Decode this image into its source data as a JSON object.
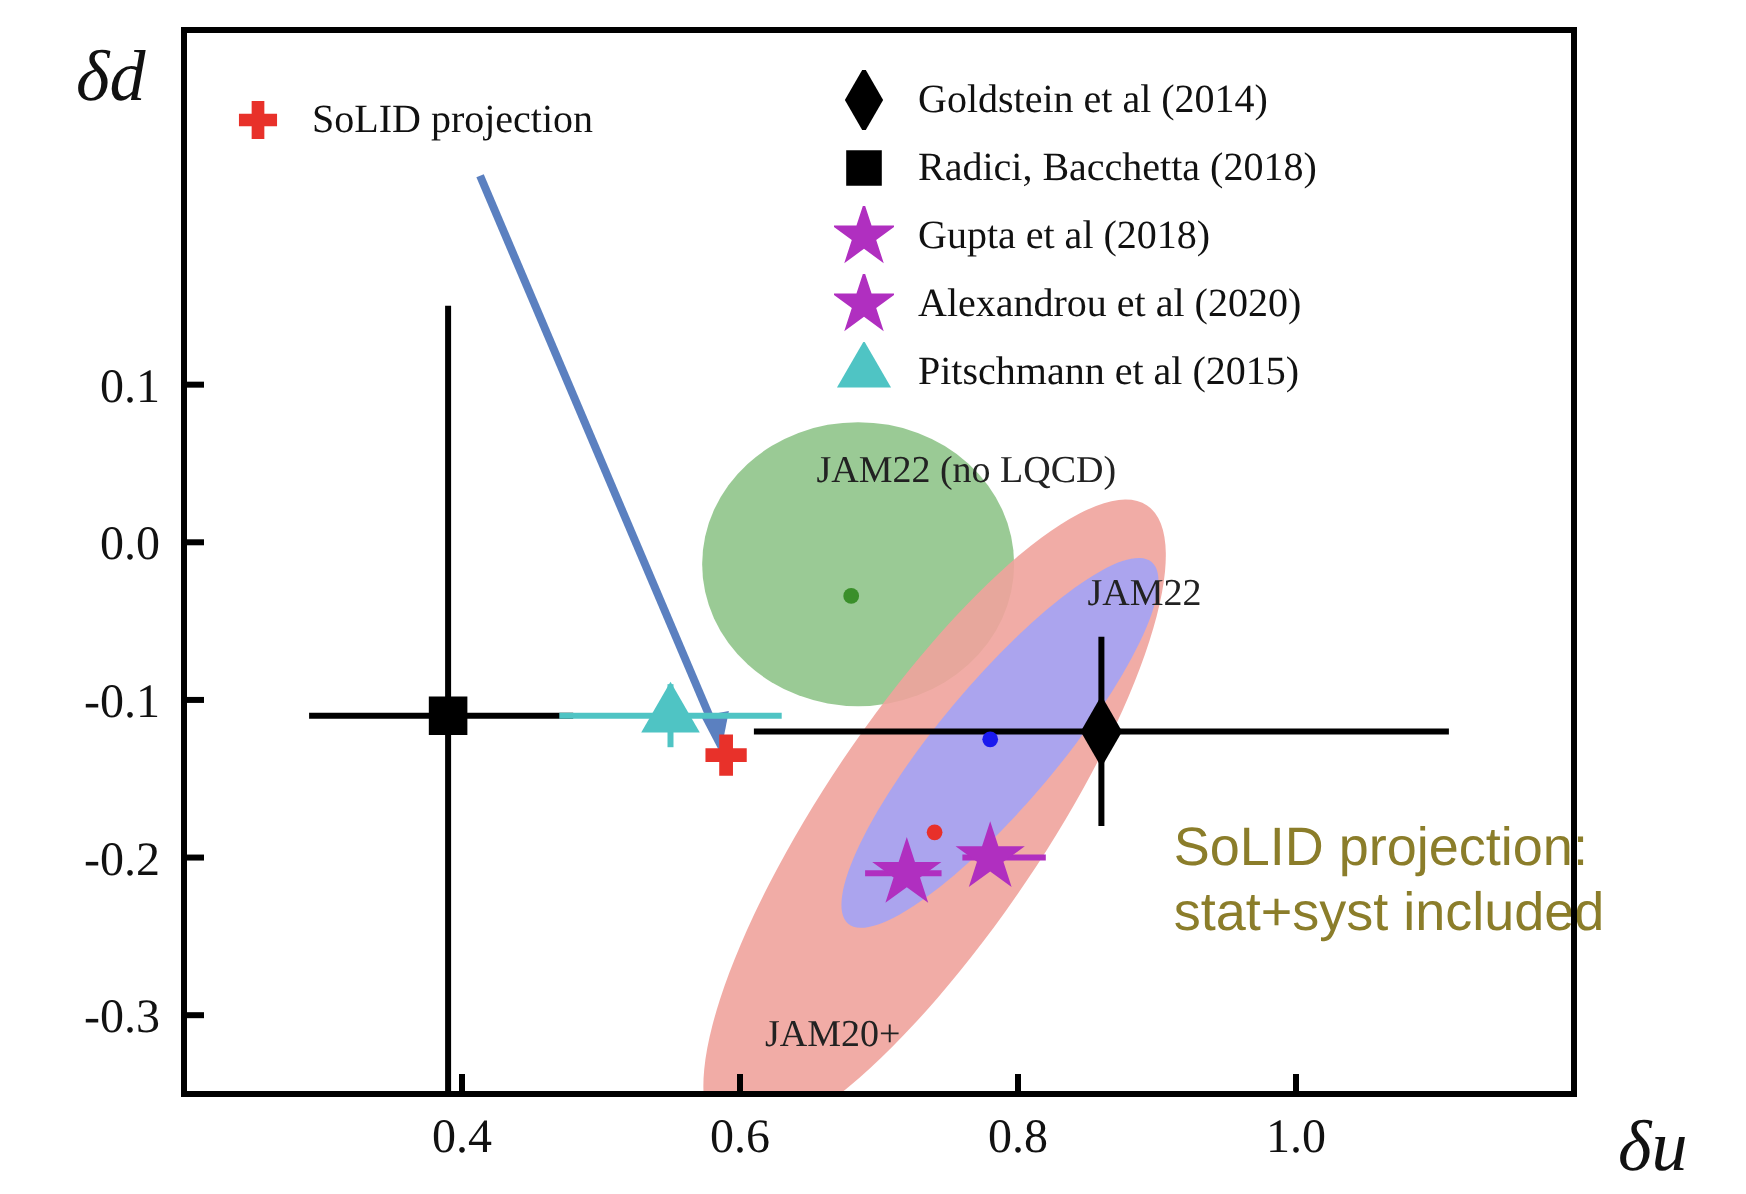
{
  "chart_data": {
    "type": "scatter",
    "xlabel": "δu",
    "ylabel": "δd",
    "xlim": [
      0.2,
      1.2
    ],
    "xticks": [
      0.4,
      0.6,
      0.8,
      {
        "value": 1,
        "label": "1.0"
      }
    ],
    "ylim": [
      -0.35,
      0.325
    ],
    "yticks": [
      -0.3,
      -0.2,
      -0.1,
      {
        "value": 0,
        "label": "0.0"
      },
      0.1
    ],
    "grid": false,
    "legend": "top",
    "series": [
      {
        "name": "SoLID projection",
        "color": "#e8312a",
        "marker": "cross",
        "x": [
          0.59
        ],
        "values": [
          -0.135
        ]
      },
      {
        "name": "Goldstein et al (2014)",
        "color": "#000000",
        "marker": "diamond",
        "x": [
          0.86
        ],
        "values": [
          -0.12
        ],
        "xerrors": [
          [
            0.61,
            1.11
          ]
        ],
        "errors": [
          [
            -0.18,
            -0.06
          ]
        ]
      },
      {
        "name": "Radici, Bacchetta (2018)",
        "color": "#000000",
        "marker": "square",
        "x": [
          0.39
        ],
        "values": [
          -0.11
        ],
        "xerrors": [
          [
            0.29,
            0.48
          ]
        ],
        "errors": [
          [
            -0.35,
            0.15
          ]
        ]
      },
      {
        "name": "Gupta et al (2018)",
        "color": "#b02fc0",
        "marker": "star",
        "x": [
          0.78
        ],
        "values": [
          -0.2
        ],
        "xerrors": [
          [
            0.76,
            0.82
          ]
        ]
      },
      {
        "name": "Alexandrou et al (2020)",
        "color": "#b02fc0",
        "marker": "star",
        "x": [
          0.72
        ],
        "values": [
          -0.21
        ],
        "xerrors": [
          [
            0.69,
            0.745
          ]
        ]
      },
      {
        "name": "Pitschmann et al (2015)",
        "color": "#4fc4c4",
        "marker": "triangle",
        "x": [
          0.55
        ],
        "values": [
          -0.11
        ],
        "xerrors": [
          [
            0.47,
            0.63
          ]
        ],
        "errors": [
          [
            -0.13,
            -0.09
          ]
        ]
      },
      {
        "color": "#3a8f2a",
        "marker": "circle",
        "x": [
          0.68
        ],
        "values": [
          -0.034
        ]
      },
      {
        "color": "#1a1aee",
        "marker": "circle",
        "x": [
          0.78
        ],
        "values": [
          -0.125
        ]
      },
      {
        "color": "#e8302a",
        "marker": "circle",
        "x": [
          0.74
        ],
        "values": [
          -0.184
        ]
      }
    ],
    "annotations": [
      "JAM22 (no LQCD)",
      "JAM22",
      "JAM20+",
      "SoLID projection:\nstat+syst included"
    ]
  }
}
